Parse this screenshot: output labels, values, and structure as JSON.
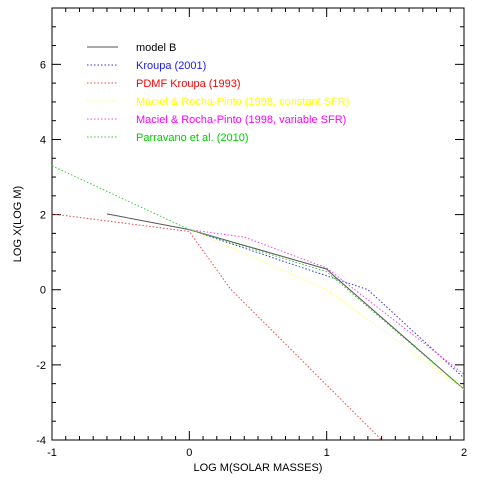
{
  "chart_data": {
    "type": "line",
    "xlabel": "LOG M(SOLAR MASSES)",
    "ylabel": "LOG X(LOG M)",
    "xlim": [
      -1,
      2
    ],
    "ylim": [
      -4,
      7.5
    ],
    "x_ticks": [
      -1,
      0,
      1,
      2
    ],
    "x_tick_labels": [
      "-1",
      "0",
      "1",
      "2"
    ],
    "y_ticks": [
      -4,
      -2,
      0,
      2,
      4,
      6
    ],
    "y_tick_labels": [
      "-4",
      "-2",
      "0",
      "2",
      "4",
      "6"
    ],
    "legend_position": "top-left",
    "grid": false,
    "series": [
      {
        "name": "model B",
        "color": "#555555",
        "text_color": "#000000",
        "style": "solid",
        "points": [
          [
            -0.6,
            2.02
          ],
          [
            0.0,
            1.6
          ],
          [
            1.0,
            0.55
          ],
          [
            1.05,
            0.38
          ],
          [
            2.0,
            -2.65
          ]
        ]
      },
      {
        "name": "Kroupa (2001)",
        "color": "#3333dd",
        "text_color": "#1a1aff",
        "style": "dotted",
        "points": [
          [
            0.0,
            1.6
          ],
          [
            1.3,
            0.0
          ],
          [
            2.0,
            -2.35
          ]
        ]
      },
      {
        "name": "PDMF Kroupa (1993)",
        "color": "#ee4444",
        "text_color": "#ff0000",
        "style": "dotted",
        "points": [
          [
            -1.0,
            2.02
          ],
          [
            0.0,
            1.55
          ],
          [
            0.3,
            0.02
          ],
          [
            1.4,
            -4.0
          ]
        ]
      },
      {
        "name": "Maciel & Rocha-Pinto (1998, constant SFR)",
        "color": "#ffff66",
        "text_color": "#ffff00",
        "style": "dotted",
        "points": [
          [
            0.0,
            1.62
          ],
          [
            1.0,
            0.0
          ],
          [
            2.0,
            -2.65
          ]
        ]
      },
      {
        "name": "Maciel & Rocha-Pinto (1998, variable SFR)",
        "color": "#ee44ee",
        "text_color": "#ff00ff",
        "style": "dotted",
        "points": [
          [
            0.0,
            1.6
          ],
          [
            0.4,
            1.4
          ],
          [
            1.0,
            0.58
          ],
          [
            2.0,
            -2.25
          ]
        ]
      },
      {
        "name": "Parravano et al. (2010)",
        "color": "#33cc33",
        "text_color": "#00cc00",
        "style": "dotted",
        "points": [
          [
            -1.0,
            3.3
          ],
          [
            0.0,
            1.6
          ],
          [
            1.0,
            0.48
          ],
          [
            2.0,
            -2.65
          ]
        ]
      }
    ]
  }
}
